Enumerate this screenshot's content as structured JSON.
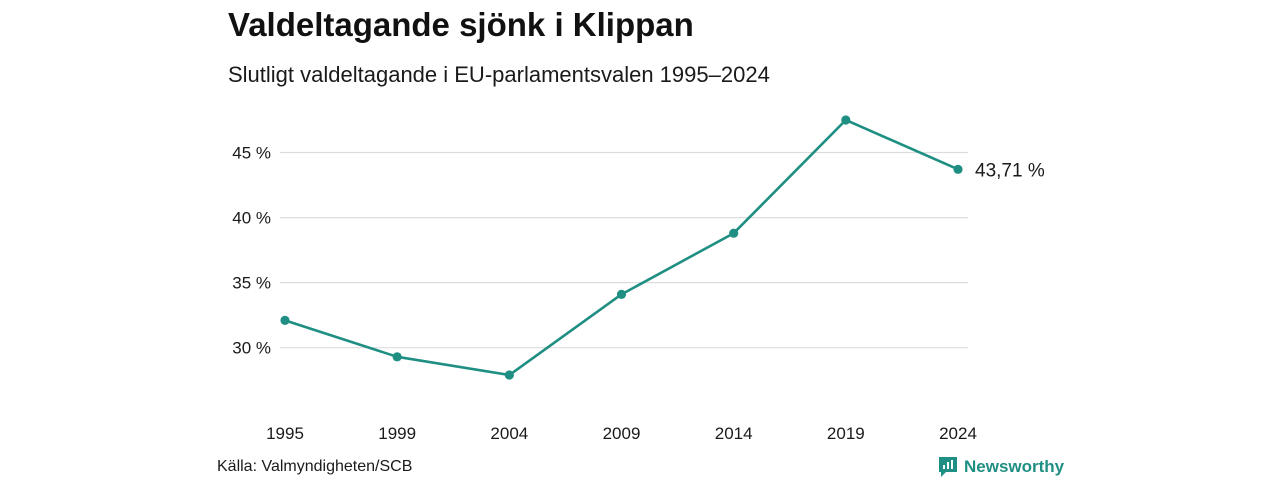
{
  "title": "Valdeltagande sjönk i Klippan",
  "subtitle": "Slutligt valdeltagande i EU-parlamentsvalen 1995–2024",
  "source": "Källa: Valmyndigheten/SCB",
  "brand": {
    "name": "Newsworthy",
    "icon": "newsworthy-logo-icon",
    "color": "#1f8f83"
  },
  "colors": {
    "line": "#1f8f83",
    "grid": "#dddddd"
  },
  "chart_data": {
    "type": "line",
    "title": "Valdeltagande sjönk i Klippan",
    "subtitle": "Slutligt valdeltagande i EU-parlamentsvalen 1995–2024",
    "x": [
      "1995",
      "1999",
      "2004",
      "2009",
      "2014",
      "2019",
      "2024"
    ],
    "series": [
      {
        "values": [
          32.1,
          29.3,
          27.9,
          34.1,
          38.8,
          47.5,
          43.71
        ]
      }
    ],
    "yticks": [
      30,
      35,
      40,
      45
    ],
    "ytick_labels": [
      "30 %",
      "35 %",
      "40 %",
      "45 %"
    ],
    "ylim": [
      26.75,
      47.5
    ],
    "grid": true,
    "end_label": "43,71 %"
  }
}
